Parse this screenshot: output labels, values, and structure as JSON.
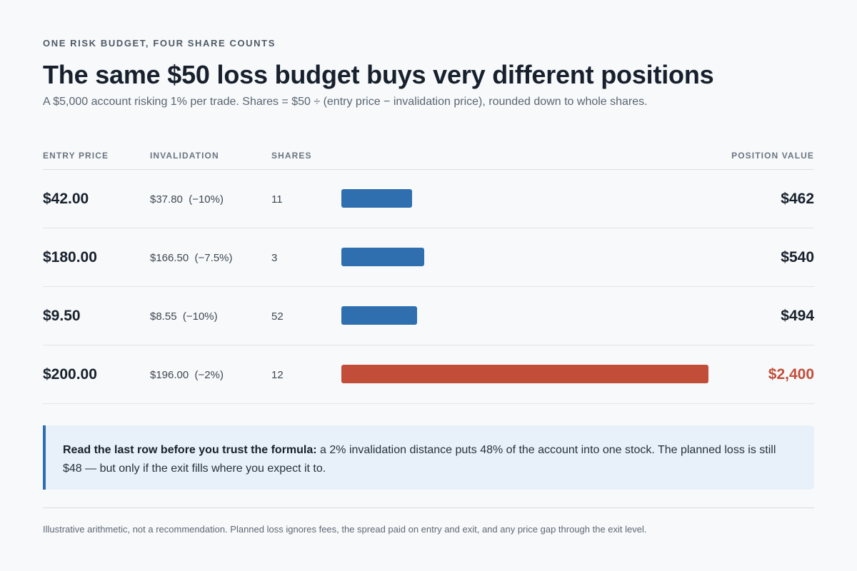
{
  "header": {
    "eyebrow": "ONE RISK BUDGET, FOUR SHARE COUNTS",
    "title": "The same $50 loss budget buys very different positions",
    "subtitle": "A $5,000 account risking 1% per trade. Shares = $50 ÷ (entry price − invalidation price), rounded down to whole shares."
  },
  "table": {
    "columns": {
      "entry": "ENTRY PRICE",
      "invalidation": "INVALIDATION",
      "shares": "SHARES",
      "value": "POSITION VALUE"
    },
    "rows": [
      {
        "entry": "$42.00",
        "invalidation": "$37.80  (−10%)",
        "shares": "11",
        "value": "$462",
        "highlight": false
      },
      {
        "entry": "$180.00",
        "invalidation": "$166.50  (−7.5%)",
        "shares": "3",
        "value": "$540",
        "highlight": false
      },
      {
        "entry": "$9.50",
        "invalidation": "$8.55  (−10%)",
        "shares": "52",
        "value": "$494",
        "highlight": false
      },
      {
        "entry": "$200.00",
        "invalidation": "$196.00  (−2%)",
        "shares": "12",
        "value": "$2,400",
        "highlight": true
      }
    ]
  },
  "chart_data": {
    "type": "bar",
    "orientation": "horizontal",
    "categories": [
      "$42.00",
      "$180.00",
      "$9.50",
      "$200.00"
    ],
    "values": [
      462,
      540,
      494,
      2400
    ],
    "colors": [
      "#2f6fb0",
      "#2f6fb0",
      "#2f6fb0",
      "#c24e3a"
    ],
    "xlabel": "POSITION VALUE",
    "xlim": [
      0,
      2400
    ],
    "grid": false
  },
  "callout": {
    "lead": "Read the last row before you trust the formula:",
    "body": " a 2% invalidation distance puts 48% of the account into one stock. The planned loss is still $48 — but only if the exit fills where you expect it to."
  },
  "footnote": "Illustrative arithmetic, not a recommendation. Planned loss ignores fees, the spread paid on entry and exit, and any price gap through the exit level.",
  "colors": {
    "accent": "#2f6fb0",
    "warning": "#c24e3a",
    "background": "#f7f9fb",
    "callout_bg": "#e8f1f9"
  }
}
